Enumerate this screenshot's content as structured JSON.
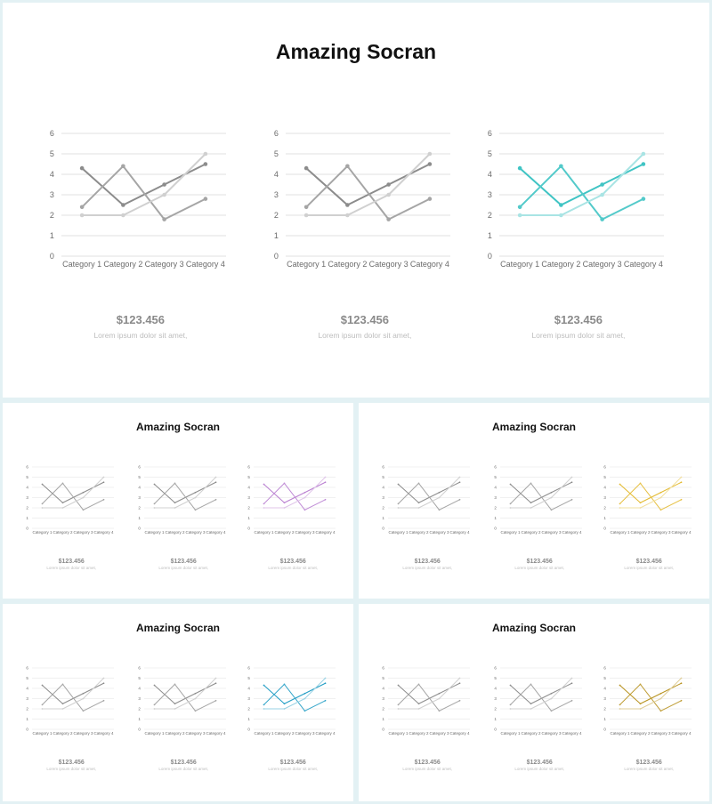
{
  "slides": [
    {
      "title": "Amazing Socran",
      "accent": ""
    },
    {
      "title": "Amazing Socran",
      "accent": "#b97fd1"
    },
    {
      "title": "Amazing Socran",
      "accent": "#e3b92e"
    },
    {
      "title": "Amazing Socran",
      "accent": "#1f9cc4"
    },
    {
      "title": "Amazing Socran",
      "accent": "#b8921e"
    }
  ],
  "main_accent": "#40c4c4",
  "panel_text": {
    "value": "$123.456",
    "caption": "Lorem ipsum dolor sit amet,"
  },
  "colors": {
    "series_1": "#8c8c8c",
    "series_2": "#a5a5a5",
    "series_3": "#d0d0d0",
    "series_4": "#9a9a9a",
    "gridline": "#e2e2e2"
  },
  "chart_data": {
    "type": "line",
    "categories": [
      "Category 1",
      "Category 2",
      "Category 3",
      "Category 4"
    ],
    "ylim": [
      0,
      6
    ],
    "yticks": [
      0,
      1,
      2,
      3,
      4,
      5,
      6
    ],
    "grid": true,
    "series": [
      {
        "values": [
          4.3,
          2.5,
          3.5,
          4.5
        ]
      },
      {
        "values": [
          2.4,
          4.4,
          1.8,
          2.8
        ]
      },
      {
        "values": [
          2.0,
          2.0,
          3.0,
          5.0
        ]
      }
    ]
  }
}
